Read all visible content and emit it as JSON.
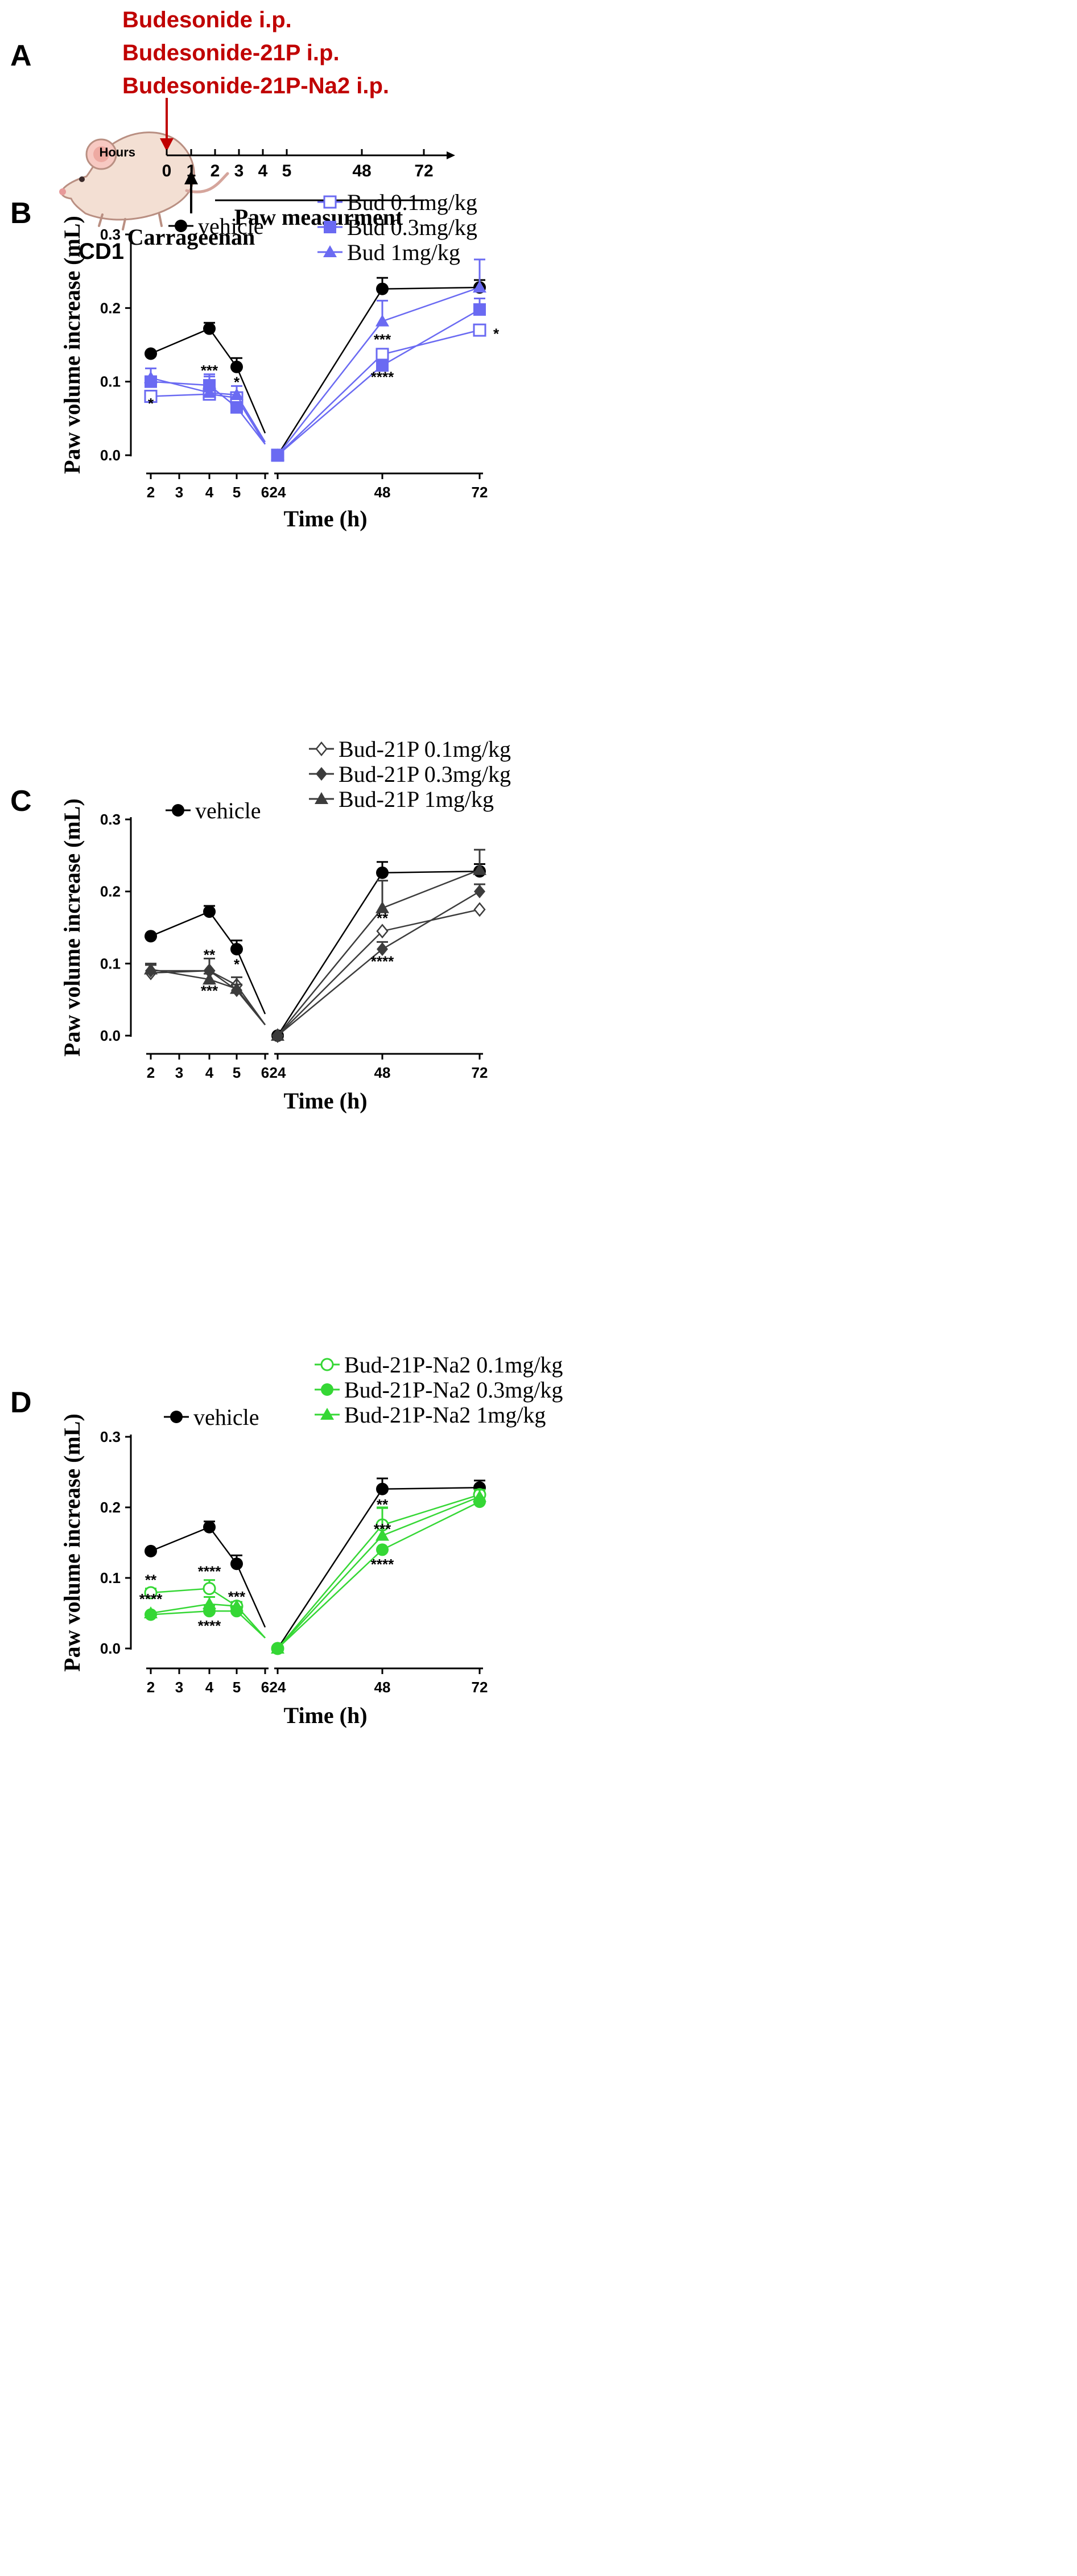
{
  "colors": {
    "vehicle": "#000000",
    "bud": "#6a6af2",
    "bud21p": "#3c3c3c",
    "bud21pna2": "#35d735",
    "treatment_text": "#c00000"
  },
  "panel_a": {
    "letter": "A",
    "mouse_label": "CD1",
    "treatments": [
      "Budesonide i.p.",
      "Budesonide-21P i.p.",
      "Budesonide-21P-Na2 i.p."
    ],
    "axis_label": "Hours",
    "ticks": [
      "0",
      "1",
      "2",
      "3",
      "4",
      "5",
      "48",
      "72"
    ],
    "carrageenan_label": "Carrageenan",
    "measurement_label": "Paw measurment",
    "mouse_icon": "mouse-icon"
  },
  "chart_data": [
    {
      "type": "line",
      "panel": "B",
      "ylabel": "Paw volume increase (mL)",
      "xlabel": "Time (h)",
      "ylim": [
        0,
        0.3
      ],
      "yticks": [
        "0.0",
        "0.1",
        "0.2",
        "0.3"
      ],
      "xticks_left": [
        "2",
        "3",
        "4",
        "5",
        "6"
      ],
      "xticks_right": [
        "24",
        "48",
        "72"
      ],
      "x": [
        2,
        4,
        5,
        6,
        24,
        48,
        72
      ],
      "series": [
        {
          "name": "vehicle",
          "marker": "filled-circle",
          "values": [
            0.138,
            0.172,
            0.12,
            0.03,
            0.0,
            0.226,
            0.228
          ],
          "err": [
            0.0,
            0.008,
            0.012,
            0,
            0,
            0.015,
            0.01
          ]
        },
        {
          "name": "Bud 0.1mg/kg",
          "marker": "open-square",
          "values": [
            0.08,
            0.083,
            0.078,
            0.015,
            0.0,
            0.137,
            0.17
          ],
          "err": [
            0.0,
            0.0,
            0.0,
            0,
            0,
            0.0,
            0.0
          ]
        },
        {
          "name": "Bud 0.3mg/kg",
          "marker": "filled-square",
          "values": [
            0.1,
            0.095,
            0.065,
            0.015,
            0.0,
            0.122,
            0.198
          ],
          "err": [
            0.018,
            0.012,
            0.006,
            0,
            0,
            0.008,
            0.015
          ]
        },
        {
          "name": "Bud 1mg/kg",
          "marker": "filled-triangle",
          "values": [
            0.105,
            0.085,
            0.082,
            0.018,
            0.0,
            0.182,
            0.228
          ],
          "err": [
            0.0,
            0.025,
            0.012,
            0,
            0,
            0.028,
            0.038
          ]
        }
      ],
      "annotations": [
        {
          "text": "*",
          "x": 2,
          "y": 0.071
        },
        {
          "text": "***",
          "x": 4,
          "y": 0.116
        },
        {
          "text": "*",
          "x": 5,
          "y": 0.1
        },
        {
          "text": "***",
          "x": 48,
          "y": 0.158
        },
        {
          "text": "****",
          "x": 48,
          "y": 0.107
        },
        {
          "text": "*",
          "x": 72,
          "y": 0.166
        }
      ]
    },
    {
      "type": "line",
      "panel": "C",
      "ylabel": "Paw volume increase (mL)",
      "xlabel": "Time (h)",
      "ylim": [
        0,
        0.3
      ],
      "yticks": [
        "0.0",
        "0.1",
        "0.2",
        "0.3"
      ],
      "xticks_left": [
        "2",
        "3",
        "4",
        "5",
        "6"
      ],
      "xticks_right": [
        "24",
        "48",
        "72"
      ],
      "x": [
        2,
        4,
        5,
        6,
        24,
        48,
        72
      ],
      "series": [
        {
          "name": "vehicle",
          "marker": "filled-circle",
          "values": [
            0.138,
            0.172,
            0.12,
            0.03,
            0.0,
            0.226,
            0.228
          ],
          "err": [
            0.0,
            0.008,
            0.012,
            0,
            0,
            0.015,
            0.01
          ]
        },
        {
          "name": "Bud-21P 0.1mg/kg",
          "marker": "open-diamond",
          "values": [
            0.087,
            0.09,
            0.07,
            0.015,
            0.0,
            0.145,
            0.175
          ],
          "err": [
            0.0,
            0.0,
            0.0,
            0,
            0,
            0.0,
            0.0
          ]
        },
        {
          "name": "Bud-21P 0.3mg/kg",
          "marker": "filled-diamond",
          "values": [
            0.09,
            0.09,
            0.063,
            0.015,
            0.0,
            0.12,
            0.2
          ],
          "err": [
            0.008,
            0.017,
            0.018,
            0,
            0,
            0.01,
            0.01
          ]
        },
        {
          "name": "Bud-21P 1mg/kg",
          "marker": "filled-triangle",
          "values": [
            0.092,
            0.078,
            0.065,
            0.015,
            0.0,
            0.177,
            0.23
          ],
          "err": [
            0.008,
            0.008,
            0.006,
            0,
            0,
            0.038,
            0.028
          ]
        }
      ],
      "annotations": [
        {
          "text": "**",
          "x": 4,
          "y": 0.113
        },
        {
          "text": "***",
          "x": 4,
          "y": 0.063
        },
        {
          "text": "*",
          "x": 5,
          "y": 0.1
        },
        {
          "text": "**",
          "x": 48,
          "y": 0.164
        },
        {
          "text": "****",
          "x": 48,
          "y": 0.104
        }
      ]
    },
    {
      "type": "line",
      "panel": "D",
      "ylabel": "Paw volume increase (mL)",
      "xlabel": "Time (h)",
      "ylim": [
        0,
        0.3
      ],
      "yticks": [
        "0.0",
        "0.1",
        "0.2",
        "0.3"
      ],
      "xticks_left": [
        "2",
        "3",
        "4",
        "5",
        "6"
      ],
      "xticks_right": [
        "24",
        "48",
        "72"
      ],
      "x": [
        2,
        4,
        5,
        6,
        24,
        48,
        72
      ],
      "series": [
        {
          "name": "vehicle",
          "marker": "filled-circle",
          "values": [
            0.138,
            0.172,
            0.12,
            0.03,
            0.0,
            0.226,
            0.228
          ],
          "err": [
            0.0,
            0.008,
            0.012,
            0,
            0,
            0.015,
            0.01
          ]
        },
        {
          "name": "Bud-21P-Na2 0.1mg/kg",
          "marker": "open-circle",
          "values": [
            0.079,
            0.085,
            0.06,
            0.015,
            0.0,
            0.175,
            0.218
          ],
          "err": [
            0.006,
            0.012,
            0.006,
            0,
            0,
            0.024,
            0.006
          ]
        },
        {
          "name": "Bud-21P-Na2 0.3mg/kg",
          "marker": "filled-circle",
          "values": [
            0.048,
            0.053,
            0.053,
            0.015,
            0.0,
            0.14,
            0.208
          ],
          "err": [
            0.0,
            0.008,
            0.006,
            0,
            0,
            0.0,
            0.0
          ]
        },
        {
          "name": "Bud-21P-Na2 1mg/kg",
          "marker": "filled-triangle",
          "values": [
            0.05,
            0.063,
            0.06,
            0.015,
            0.0,
            0.16,
            0.215
          ],
          "err": [
            0.0,
            0.01,
            0.0,
            0,
            0,
            0.04,
            0.01
          ]
        }
      ],
      "annotations": [
        {
          "text": "**",
          "x": 2,
          "y": 0.098
        },
        {
          "text": "****",
          "x": 2,
          "y": 0.071
        },
        {
          "text": "****",
          "x": 4,
          "y": 0.11
        },
        {
          "text": "****",
          "x": 4,
          "y": 0.033
        },
        {
          "text": "***",
          "x": 5,
          "y": 0.074
        },
        {
          "text": "**",
          "x": 48,
          "y": 0.205
        },
        {
          "text": "***",
          "x": 48,
          "y": 0.17
        },
        {
          "text": "****",
          "x": 48,
          "y": 0.12
        }
      ]
    }
  ]
}
